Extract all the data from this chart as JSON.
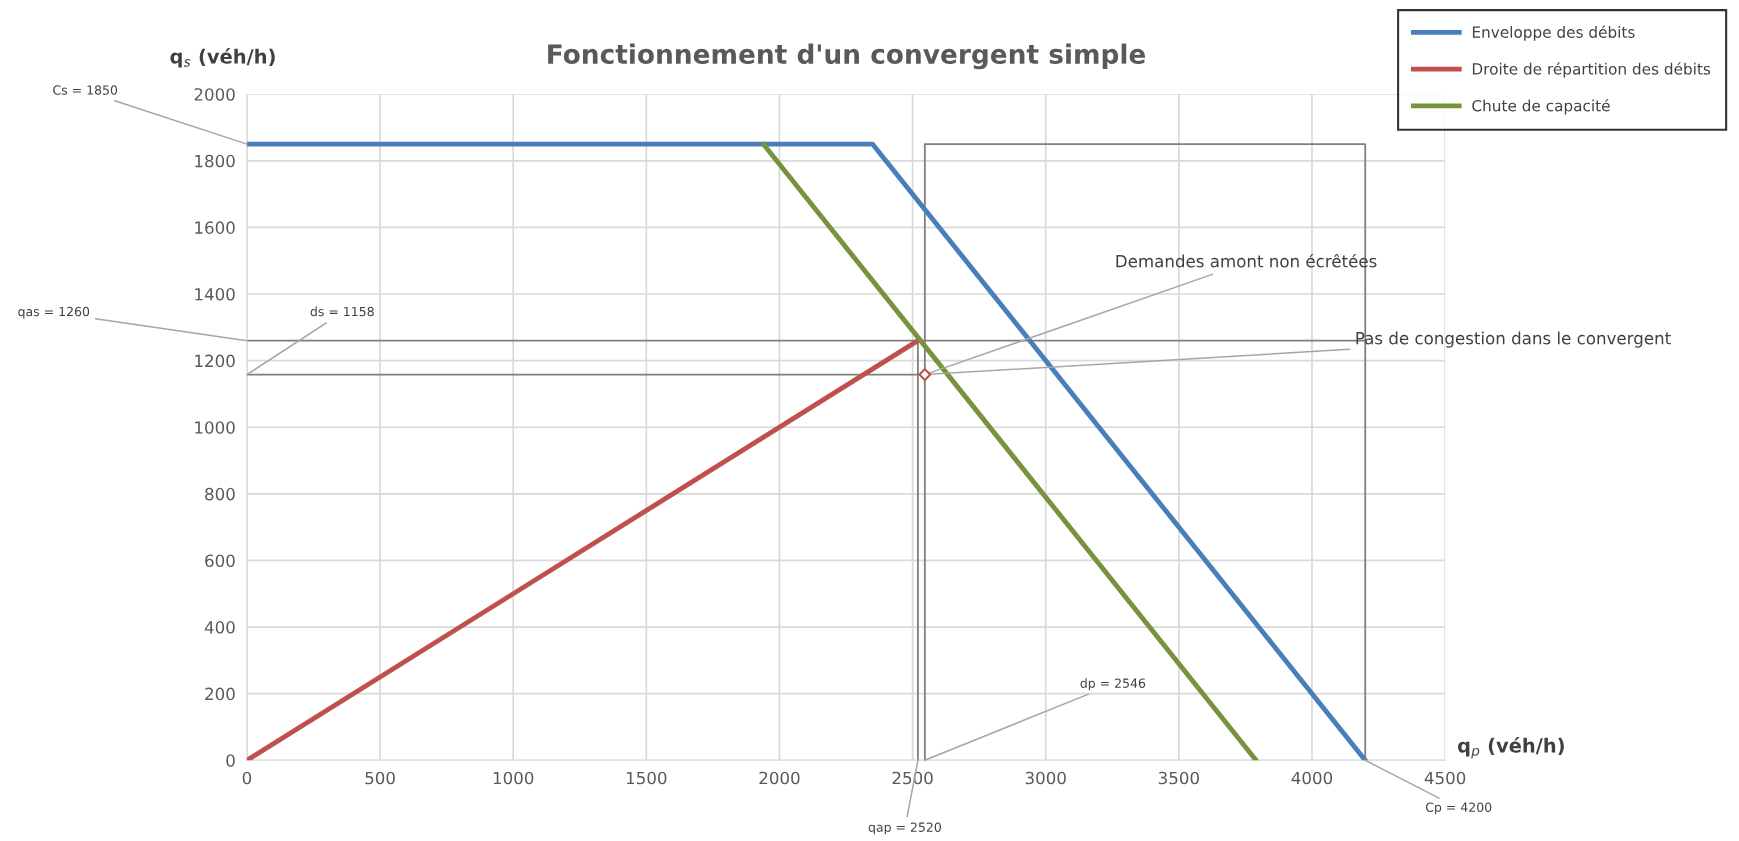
{
  "chart_data": {
    "type": "line",
    "title": "Fonctionnement d'un convergent simple",
    "xlabel": "q$_{p}$ (véh/h)",
    "ylabel": "q$_{s}$ (véh/h)",
    "xlim": [
      0,
      4500
    ],
    "ylim": [
      0,
      2000
    ],
    "xticks": [
      0,
      500,
      1000,
      1500,
      2000,
      2500,
      3000,
      3500,
      4000,
      4500
    ],
    "yticks": [
      0,
      200,
      400,
      600,
      800,
      1000,
      1200,
      1400,
      1600,
      1800,
      2000
    ],
    "grid": true,
    "legend": "top right",
    "marker": "none",
    "line_style": "solid",
    "series": [
      {
        "name": "Enveloppe des débits",
        "color": "#4a7ebb",
        "x": [
          0,
          2350,
          4200
        ],
        "values": [
          1850,
          1850,
          0
        ]
      },
      {
        "name": "Droite de répartition des débits",
        "color": "#c0504d",
        "x": [
          0,
          2520
        ],
        "values": [
          0,
          1260
        ]
      },
      {
        "name": "Chute de capacité",
        "color": "#77933c",
        "x": [
          1940,
          3790
        ],
        "values": [
          1850,
          0
        ]
      },
      {
        "color": "#7f7f7f",
        "x": [
          0,
          4200
        ],
        "values": [
          1260,
          1260
        ]
      },
      {
        "color": "#7f7f7f",
        "x": [
          0,
          2546
        ],
        "values": [
          1158,
          1158
        ]
      },
      {
        "color": "#7f7f7f",
        "x": [
          2520,
          2520
        ],
        "values": [
          0,
          1260
        ]
      },
      {
        "color": "#7f7f7f",
        "x": [
          2546,
          2546,
          4200,
          4200
        ],
        "values": [
          0,
          1850,
          1850,
          0
        ]
      },
      {
        "type": "scatter",
        "marker": "diamond",
        "color": "#c0504d",
        "x": [
          2546
        ],
        "values": [
          1158
        ]
      }
    ],
    "annotations": [
      {
        "text": "Cs = 1850",
        "x": 0,
        "y": 1850
      },
      {
        "text": "qas = 1260",
        "x": 0,
        "y": 1260
      },
      {
        "text": "ds = 1158",
        "x": 0,
        "y": 1158
      },
      {
        "text": "Demandes amont non écrêtées",
        "x": 2546,
        "y": 1158
      },
      {
        "text": "Pas de congestion dans le convergent",
        "x": 2546,
        "y": 1158
      },
      {
        "text": "dp = 2546",
        "x": 2546,
        "y": 0
      },
      {
        "text": "qap = 2520",
        "x": 2520,
        "y": 0
      },
      {
        "text": "Cp = 4200",
        "x": 4200,
        "y": 0
      }
    ]
  }
}
